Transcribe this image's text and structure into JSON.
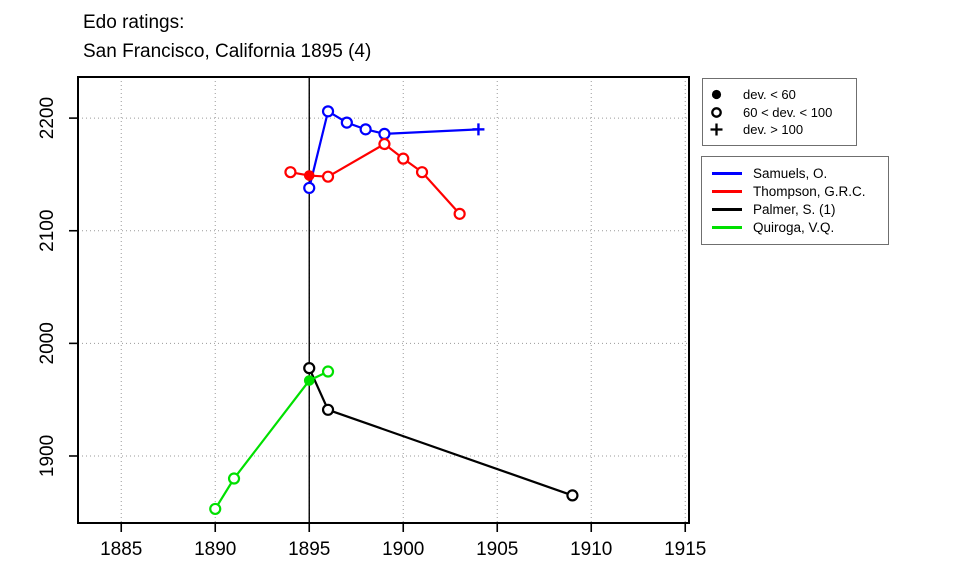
{
  "title": {
    "line1": "Edo ratings:",
    "line2": "San Francisco, California 1895 (4)"
  },
  "chart_data": {
    "type": "line",
    "title": "Edo ratings: San Francisco, California 1895 (4)",
    "xlabel": "",
    "ylabel": "",
    "xlim": [
      1882.7,
      1915.2
    ],
    "ylim": [
      1840.5,
      2236.5
    ],
    "xticks": [
      1885,
      1890,
      1895,
      1900,
      1905,
      1910,
      1915
    ],
    "yticks": [
      1900,
      2000,
      2100,
      2200
    ],
    "grid": "dotted",
    "reference_vline_x": 1895,
    "marker_legend": [
      {
        "marker": "filled-circle",
        "label": "dev. < 60"
      },
      {
        "marker": "open-circle",
        "label": "60 < dev. < 100"
      },
      {
        "marker": "plus",
        "label": "dev. > 100"
      }
    ],
    "series": [
      {
        "name": "Samuels, O.",
        "color": "#0000ff",
        "points": [
          {
            "year": 1895,
            "rating": 2138,
            "marker": "open-circle"
          },
          {
            "year": 1896,
            "rating": 2206,
            "marker": "open-circle"
          },
          {
            "year": 1897,
            "rating": 2196,
            "marker": "open-circle"
          },
          {
            "year": 1898,
            "rating": 2190,
            "marker": "open-circle"
          },
          {
            "year": 1899,
            "rating": 2186,
            "marker": "open-circle"
          },
          {
            "year": 1904,
            "rating": 2190,
            "marker": "plus"
          }
        ]
      },
      {
        "name": "Thompson, G.R.C.",
        "color": "#ff0000",
        "points": [
          {
            "year": 1894,
            "rating": 2152,
            "marker": "open-circle"
          },
          {
            "year": 1895,
            "rating": 2149,
            "marker": "filled-circle"
          },
          {
            "year": 1896,
            "rating": 2148,
            "marker": "open-circle"
          },
          {
            "year": 1899,
            "rating": 2177,
            "marker": "open-circle"
          },
          {
            "year": 1900,
            "rating": 2164,
            "marker": "open-circle"
          },
          {
            "year": 1901,
            "rating": 2152,
            "marker": "open-circle"
          },
          {
            "year": 1903,
            "rating": 2115,
            "marker": "open-circle"
          }
        ]
      },
      {
        "name": "Palmer, S. (1)",
        "color": "#000000",
        "points": [
          {
            "year": 1895,
            "rating": 1978,
            "marker": "open-circle"
          },
          {
            "year": 1896,
            "rating": 1941,
            "marker": "open-circle"
          },
          {
            "year": 1909,
            "rating": 1865,
            "marker": "open-circle"
          }
        ]
      },
      {
        "name": "Quiroga, V.Q.",
        "color": "#00e000",
        "points": [
          {
            "year": 1890,
            "rating": 1853,
            "marker": "open-circle"
          },
          {
            "year": 1891,
            "rating": 1880,
            "marker": "open-circle"
          },
          {
            "year": 1895,
            "rating": 1967,
            "marker": "filled-circle"
          },
          {
            "year": 1896,
            "rating": 1975,
            "marker": "open-circle"
          }
        ]
      }
    ],
    "legend_position": "right"
  }
}
